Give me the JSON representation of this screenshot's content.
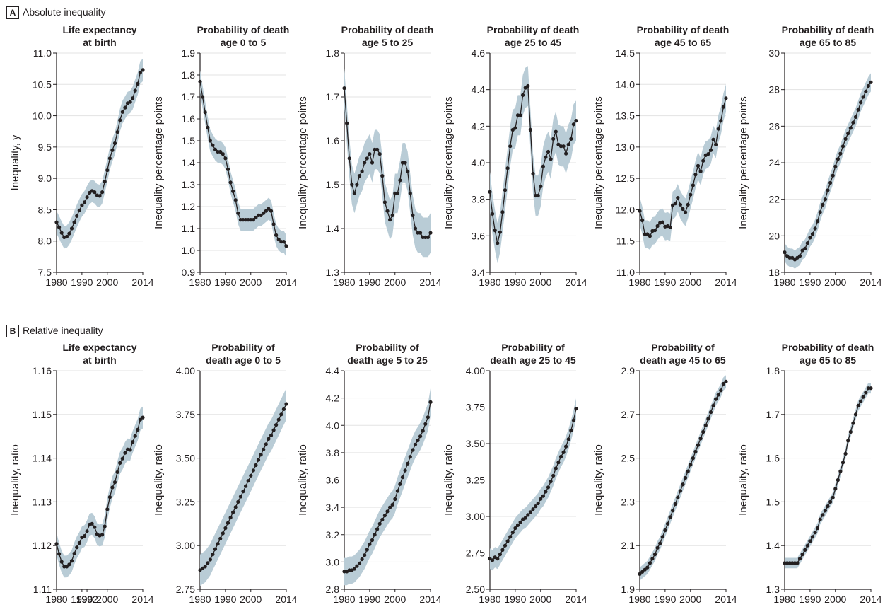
{
  "panels": {
    "A": {
      "tag": "A",
      "title": "Absolute inequality"
    },
    "B": {
      "tag": "B",
      "title": "Relative inequality"
    }
  },
  "colors": {
    "band": "#b9ccd6",
    "line": "#231f20",
    "grid": "#e3e3e3",
    "axis": "#231f20"
  },
  "chart_data": [
    {
      "panel": "A",
      "type": "line",
      "title_lines": [
        "Life expectancy",
        "at birth"
      ],
      "ylabel": "Inequality, y",
      "ylim": [
        7.5,
        11.0
      ],
      "yticks": [
        "7.5",
        "8.0",
        "8.5",
        "9.0",
        "9.5",
        "10.0",
        "10.5",
        "11.0"
      ],
      "xlim": [
        1980,
        2014
      ],
      "xticks": [
        "1980",
        "1990",
        "2000",
        "2014"
      ],
      "x": [
        1980,
        1981,
        1982,
        1983,
        1984,
        1985,
        1986,
        1987,
        1988,
        1989,
        1990,
        1991,
        1992,
        1993,
        1994,
        1995,
        1996,
        1997,
        1998,
        1999,
        2000,
        2001,
        2002,
        2003,
        2004,
        2005,
        2006,
        2007,
        2008,
        2009,
        2010,
        2011,
        2012,
        2013,
        2014
      ],
      "y": [
        8.3,
        8.22,
        8.13,
        8.06,
        8.07,
        8.12,
        8.2,
        8.3,
        8.4,
        8.49,
        8.57,
        8.62,
        8.7,
        8.77,
        8.8,
        8.78,
        8.73,
        8.72,
        8.78,
        8.95,
        9.13,
        9.32,
        9.45,
        9.56,
        9.74,
        9.93,
        10.06,
        10.13,
        10.2,
        10.22,
        10.28,
        10.4,
        10.51,
        10.69,
        10.73
      ],
      "band": 0.18
    },
    {
      "panel": "A",
      "type": "line",
      "title_lines": [
        "Probability of death",
        "age 0 to 5"
      ],
      "ylabel": "Inequality percentage points",
      "ylim": [
        0.9,
        1.9
      ],
      "yticks": [
        "0.9",
        "1.0",
        "1.1",
        "1.2",
        "1.3",
        "1.4",
        "1.5",
        "1.6",
        "1.7",
        "1.8",
        "1.9"
      ],
      "xlim": [
        1980,
        2014
      ],
      "xticks": [
        "1980",
        "1990",
        "2000",
        "2014"
      ],
      "x": [
        1980,
        1981,
        1982,
        1983,
        1984,
        1985,
        1986,
        1987,
        1988,
        1989,
        1990,
        1991,
        1992,
        1993,
        1994,
        1995,
        1996,
        1997,
        1998,
        1999,
        2000,
        2001,
        2002,
        2003,
        2004,
        2005,
        2006,
        2007,
        2008,
        2009,
        2010,
        2011,
        2012,
        2013,
        2014
      ],
      "y": [
        1.77,
        1.7,
        1.63,
        1.56,
        1.5,
        1.48,
        1.46,
        1.45,
        1.45,
        1.44,
        1.42,
        1.37,
        1.31,
        1.27,
        1.23,
        1.17,
        1.14,
        1.14,
        1.14,
        1.14,
        1.14,
        1.14,
        1.15,
        1.16,
        1.16,
        1.17,
        1.18,
        1.19,
        1.18,
        1.12,
        1.07,
        1.05,
        1.04,
        1.04,
        1.02
      ],
      "band": 0.05
    },
    {
      "panel": "A",
      "type": "line",
      "title_lines": [
        "Probability of death",
        "age 5 to 25"
      ],
      "ylabel": "Inequality percentage points",
      "ylim": [
        1.3,
        1.8
      ],
      "yticks": [
        "1.3",
        "1.4",
        "1.5",
        "1.6",
        "1.7",
        "1.8"
      ],
      "xlim": [
        1980,
        2014
      ],
      "xticks": [
        "1980",
        "1990",
        "2000",
        "2014"
      ],
      "x": [
        1980,
        1981,
        1982,
        1983,
        1984,
        1985,
        1986,
        1987,
        1988,
        1989,
        1990,
        1991,
        1992,
        1993,
        1994,
        1995,
        1996,
        1997,
        1998,
        1999,
        2000,
        2001,
        2002,
        2003,
        2004,
        2005,
        2006,
        2007,
        2008,
        2009,
        2010,
        2011,
        2012,
        2013,
        2014
      ],
      "y": [
        1.72,
        1.64,
        1.56,
        1.5,
        1.48,
        1.5,
        1.52,
        1.53,
        1.55,
        1.56,
        1.57,
        1.55,
        1.58,
        1.58,
        1.57,
        1.52,
        1.46,
        1.44,
        1.42,
        1.43,
        1.48,
        1.48,
        1.51,
        1.55,
        1.55,
        1.53,
        1.48,
        1.43,
        1.4,
        1.39,
        1.39,
        1.38,
        1.38,
        1.38,
        1.39
      ],
      "band": 0.045
    },
    {
      "panel": "A",
      "type": "line",
      "title_lines": [
        "Probability of death",
        "age 25 to 45"
      ],
      "ylabel": "Inequality percentage points",
      "ylim": [
        3.4,
        4.6
      ],
      "yticks": [
        "3.4",
        "3.6",
        "3.8",
        "4.0",
        "4.2",
        "4.4",
        "4.6"
      ],
      "xlim": [
        1980,
        2014
      ],
      "xticks": [
        "1980",
        "1990",
        "2000",
        "2014"
      ],
      "x": [
        1980,
        1981,
        1982,
        1983,
        1984,
        1985,
        1986,
        1987,
        1988,
        1989,
        1990,
        1991,
        1992,
        1993,
        1994,
        1995,
        1996,
        1997,
        1998,
        1999,
        2000,
        2001,
        2002,
        2003,
        2004,
        2005,
        2006,
        2007,
        2008,
        2009,
        2010,
        2011,
        2012,
        2013,
        2014
      ],
      "y": [
        3.84,
        3.72,
        3.63,
        3.56,
        3.62,
        3.73,
        3.85,
        3.97,
        4.09,
        4.18,
        4.19,
        4.26,
        4.26,
        4.37,
        4.41,
        4.42,
        4.18,
        3.94,
        3.82,
        3.82,
        3.87,
        3.98,
        4.03,
        4.06,
        4.02,
        4.13,
        4.17,
        4.1,
        4.09,
        4.09,
        4.05,
        4.1,
        4.13,
        4.21,
        4.23
      ],
      "band": 0.11
    },
    {
      "panel": "A",
      "type": "line",
      "title_lines": [
        "Probability of death",
        "age 45 to 65"
      ],
      "ylabel": "Inequality percentage points",
      "ylim": [
        11.0,
        14.5
      ],
      "yticks": [
        "11.0",
        "11.5",
        "12.0",
        "12.5",
        "13.0",
        "13.5",
        "14.0",
        "14.5"
      ],
      "xlim": [
        1980,
        2014
      ],
      "xticks": [
        "1980",
        "1990",
        "2000",
        "2014"
      ],
      "x": [
        1980,
        1981,
        1982,
        1983,
        1984,
        1985,
        1986,
        1987,
        1988,
        1989,
        1990,
        1991,
        1992,
        1993,
        1994,
        1995,
        1996,
        1997,
        1998,
        1999,
        2000,
        2001,
        2002,
        2003,
        2004,
        2005,
        2006,
        2007,
        2008,
        2009,
        2010,
        2011,
        2012,
        2013,
        2014
      ],
      "y": [
        11.98,
        11.83,
        11.61,
        11.61,
        11.58,
        11.66,
        11.67,
        11.74,
        11.79,
        11.8,
        11.73,
        11.74,
        11.72,
        12.07,
        12.1,
        12.19,
        12.08,
        12.01,
        11.96,
        12.08,
        12.24,
        12.39,
        12.56,
        12.7,
        12.61,
        12.78,
        12.87,
        12.89,
        12.95,
        13.12,
        13.04,
        13.29,
        13.42,
        13.64,
        13.78
      ],
      "band": 0.22
    },
    {
      "panel": "A",
      "type": "line",
      "title_lines": [
        "Probability of death",
        "age 65 to 85"
      ],
      "ylabel": "Inequality percentage points",
      "ylim": [
        18,
        30
      ],
      "yticks": [
        "18",
        "20",
        "22",
        "24",
        "26",
        "28",
        "30"
      ],
      "xlim": [
        1980,
        2014
      ],
      "xticks": [
        "1980",
        "1990",
        "2000",
        "2014"
      ],
      "x": [
        1980,
        1981,
        1982,
        1983,
        1984,
        1985,
        1986,
        1987,
        1988,
        1989,
        1990,
        1991,
        1992,
        1993,
        1994,
        1995,
        1996,
        1997,
        1998,
        1999,
        2000,
        2001,
        2002,
        2003,
        2004,
        2005,
        2006,
        2007,
        2008,
        2009,
        2010,
        2011,
        2012,
        2013,
        2014
      ],
      "y": [
        19.1,
        18.9,
        18.8,
        18.8,
        18.7,
        18.8,
        18.9,
        19.2,
        19.3,
        19.6,
        19.9,
        20.1,
        20.4,
        20.8,
        21.3,
        21.7,
        22.0,
        22.5,
        22.9,
        23.3,
        23.8,
        24.2,
        24.5,
        24.9,
        25.3,
        25.6,
        25.9,
        26.2,
        26.5,
        26.9,
        27.3,
        27.6,
        27.9,
        28.2,
        28.4
      ],
      "band": 0.5
    },
    {
      "panel": "B",
      "type": "line",
      "title_lines": [
        "Life expectancy",
        "at birth"
      ],
      "ylabel": "Inequality, ratio",
      "ylim": [
        1.11,
        1.16
      ],
      "yticks": [
        "1.11",
        "1.12",
        "1.13",
        "1.14",
        "1.15",
        "1.16"
      ],
      "xlim": [
        1980,
        2014
      ],
      "xticks": [
        "1980",
        "1990",
        "1992",
        "2000",
        "2014"
      ],
      "x": [
        1980,
        1981,
        1982,
        1983,
        1984,
        1985,
        1986,
        1987,
        1988,
        1989,
        1990,
        1991,
        1992,
        1993,
        1994,
        1995,
        1996,
        1997,
        1998,
        1999,
        2000,
        2001,
        2002,
        2003,
        2004,
        2005,
        2006,
        2007,
        2008,
        2009,
        2010,
        2011,
        2012,
        2013,
        2014
      ],
      "y": [
        1.1204,
        1.1181,
        1.1163,
        1.1152,
        1.1152,
        1.1157,
        1.1165,
        1.1182,
        1.1196,
        1.1206,
        1.1219,
        1.1222,
        1.1233,
        1.1248,
        1.125,
        1.1242,
        1.1226,
        1.1223,
        1.1225,
        1.1244,
        1.1283,
        1.1311,
        1.1333,
        1.1345,
        1.1368,
        1.1389,
        1.1399,
        1.1412,
        1.142,
        1.1419,
        1.1437,
        1.1451,
        1.1465,
        1.1488,
        1.1493
      ],
      "band": 0.0025
    },
    {
      "panel": "B",
      "type": "line",
      "title_lines": [
        "Probability of",
        "death age 0 to 5"
      ],
      "ylabel": "Inequality, ratio",
      "ylim": [
        2.75,
        4.0
      ],
      "yticks": [
        "2.75",
        "3.00",
        "3.25",
        "3.50",
        "3.75",
        "4.00"
      ],
      "xlim": [
        1980,
        2014
      ],
      "xticks": [
        "1980",
        "1990",
        "2000",
        "2014"
      ],
      "x": [
        1980,
        1981,
        1982,
        1983,
        1984,
        1985,
        1986,
        1987,
        1988,
        1989,
        1990,
        1991,
        1992,
        1993,
        1994,
        1995,
        1996,
        1997,
        1998,
        1999,
        2000,
        2001,
        2002,
        2003,
        2004,
        2005,
        2006,
        2007,
        2008,
        2009,
        2010,
        2011,
        2012,
        2013,
        2014
      ],
      "y": [
        2.86,
        2.87,
        2.88,
        2.9,
        2.92,
        2.95,
        2.98,
        3.01,
        3.04,
        3.07,
        3.1,
        3.13,
        3.16,
        3.19,
        3.22,
        3.25,
        3.28,
        3.31,
        3.34,
        3.37,
        3.4,
        3.43,
        3.46,
        3.49,
        3.52,
        3.55,
        3.58,
        3.61,
        3.63,
        3.66,
        3.69,
        3.72,
        3.75,
        3.78,
        3.81
      ],
      "band": 0.09
    },
    {
      "panel": "B",
      "type": "line",
      "title_lines": [
        "Probability of",
        "death age 5 to 25"
      ],
      "ylabel": "Inequality, ratio",
      "ylim": [
        2.8,
        4.4
      ],
      "yticks": [
        "2.8",
        "3.0",
        "3.2",
        "3.4",
        "3.6",
        "3.8",
        "4.0",
        "4.2",
        "4.4"
      ],
      "xlim": [
        1980,
        2014
      ],
      "xticks": [
        "1980",
        "1990",
        "2000",
        "2014"
      ],
      "x": [
        1980,
        1981,
        1982,
        1983,
        1984,
        1985,
        1986,
        1987,
        1988,
        1989,
        1990,
        1991,
        1992,
        1993,
        1994,
        1995,
        1996,
        1997,
        1998,
        1999,
        2000,
        2001,
        2002,
        2003,
        2004,
        2005,
        2006,
        2007,
        2008,
        2009,
        2010,
        2011,
        2012,
        2013,
        2014
      ],
      "y": [
        2.93,
        2.93,
        2.94,
        2.94,
        2.95,
        2.97,
        2.99,
        3.02,
        3.05,
        3.09,
        3.13,
        3.16,
        3.2,
        3.24,
        3.28,
        3.31,
        3.34,
        3.37,
        3.4,
        3.42,
        3.46,
        3.52,
        3.57,
        3.62,
        3.67,
        3.72,
        3.77,
        3.82,
        3.86,
        3.89,
        3.92,
        3.96,
        4.01,
        4.06,
        4.17
      ],
      "band": 0.1
    },
    {
      "panel": "B",
      "type": "line",
      "title_lines": [
        "Probability of",
        "death age 25 to 45"
      ],
      "ylabel": "Inequality, ratio",
      "ylim": [
        2.5,
        4.0
      ],
      "yticks": [
        "2.50",
        "2.75",
        "3.00",
        "3.25",
        "3.50",
        "3.75",
        "4.00"
      ],
      "xlim": [
        1980,
        2014
      ],
      "xticks": [
        "1980",
        "1990",
        "2000",
        "2014"
      ],
      "x": [
        1980,
        1981,
        1982,
        1983,
        1984,
        1985,
        1986,
        1987,
        1988,
        1989,
        1990,
        1991,
        1992,
        1993,
        1994,
        1995,
        1996,
        1997,
        1998,
        1999,
        2000,
        2001,
        2002,
        2003,
        2004,
        2005,
        2006,
        2007,
        2008,
        2009,
        2010,
        2011,
        2012,
        2013,
        2014
      ],
      "y": [
        2.71,
        2.7,
        2.72,
        2.71,
        2.74,
        2.77,
        2.8,
        2.83,
        2.86,
        2.89,
        2.92,
        2.94,
        2.96,
        2.98,
        2.99,
        3.01,
        3.03,
        3.05,
        3.07,
        3.09,
        3.12,
        3.14,
        3.17,
        3.2,
        3.24,
        3.28,
        3.33,
        3.37,
        3.41,
        3.44,
        3.48,
        3.53,
        3.59,
        3.66,
        3.74
      ],
      "band": 0.07
    },
    {
      "panel": "B",
      "type": "line",
      "title_lines": [
        "Probability of",
        "death age 45 to 65"
      ],
      "ylabel": "Inequality, ratio",
      "ylim": [
        1.9,
        2.9
      ],
      "yticks": [
        "1.9",
        "2.1",
        "2.3",
        "2.5",
        "2.7",
        "2.9"
      ],
      "xlim": [
        1980,
        2014
      ],
      "xticks": [
        "1980",
        "1990",
        "2000",
        "2014"
      ],
      "x": [
        1980,
        1981,
        1982,
        1983,
        1984,
        1985,
        1986,
        1987,
        1988,
        1989,
        1990,
        1991,
        1992,
        1993,
        1994,
        1995,
        1996,
        1997,
        1998,
        1999,
        2000,
        2001,
        2002,
        2003,
        2004,
        2005,
        2006,
        2007,
        2008,
        2009,
        2010,
        2011,
        2012,
        2013,
        2014
      ],
      "y": [
        1.97,
        1.98,
        1.99,
        2.0,
        2.02,
        2.04,
        2.06,
        2.09,
        2.11,
        2.14,
        2.17,
        2.2,
        2.23,
        2.26,
        2.29,
        2.32,
        2.35,
        2.38,
        2.41,
        2.44,
        2.47,
        2.5,
        2.53,
        2.56,
        2.59,
        2.62,
        2.65,
        2.68,
        2.71,
        2.74,
        2.77,
        2.79,
        2.81,
        2.84,
        2.85
      ],
      "band": 0.03
    },
    {
      "panel": "B",
      "type": "line",
      "title_lines": [
        "Probability of death",
        "age 65 to 85"
      ],
      "ylabel": "Inequality, ratio",
      "ylim": [
        1.3,
        1.8
      ],
      "yticks": [
        "1.3",
        "1.4",
        "1.5",
        "1.6",
        "1.7",
        "1.8"
      ],
      "xlim": [
        1980,
        2014
      ],
      "xticks": [
        "1980",
        "1990",
        "2000",
        "2014"
      ],
      "x": [
        1980,
        1981,
        1982,
        1983,
        1984,
        1985,
        1986,
        1987,
        1988,
        1989,
        1990,
        1991,
        1992,
        1993,
        1994,
        1995,
        1996,
        1997,
        1998,
        1999,
        2000,
        2001,
        2002,
        2003,
        2004,
        2005,
        2006,
        2007,
        2008,
        2009,
        2010,
        2011,
        2012,
        2013,
        2014
      ],
      "y": [
        1.36,
        1.36,
        1.36,
        1.36,
        1.36,
        1.36,
        1.37,
        1.38,
        1.39,
        1.4,
        1.41,
        1.42,
        1.43,
        1.44,
        1.46,
        1.47,
        1.48,
        1.49,
        1.5,
        1.51,
        1.53,
        1.55,
        1.57,
        1.59,
        1.61,
        1.64,
        1.66,
        1.68,
        1.7,
        1.72,
        1.73,
        1.74,
        1.75,
        1.76,
        1.76
      ],
      "band": 0.012
    }
  ]
}
